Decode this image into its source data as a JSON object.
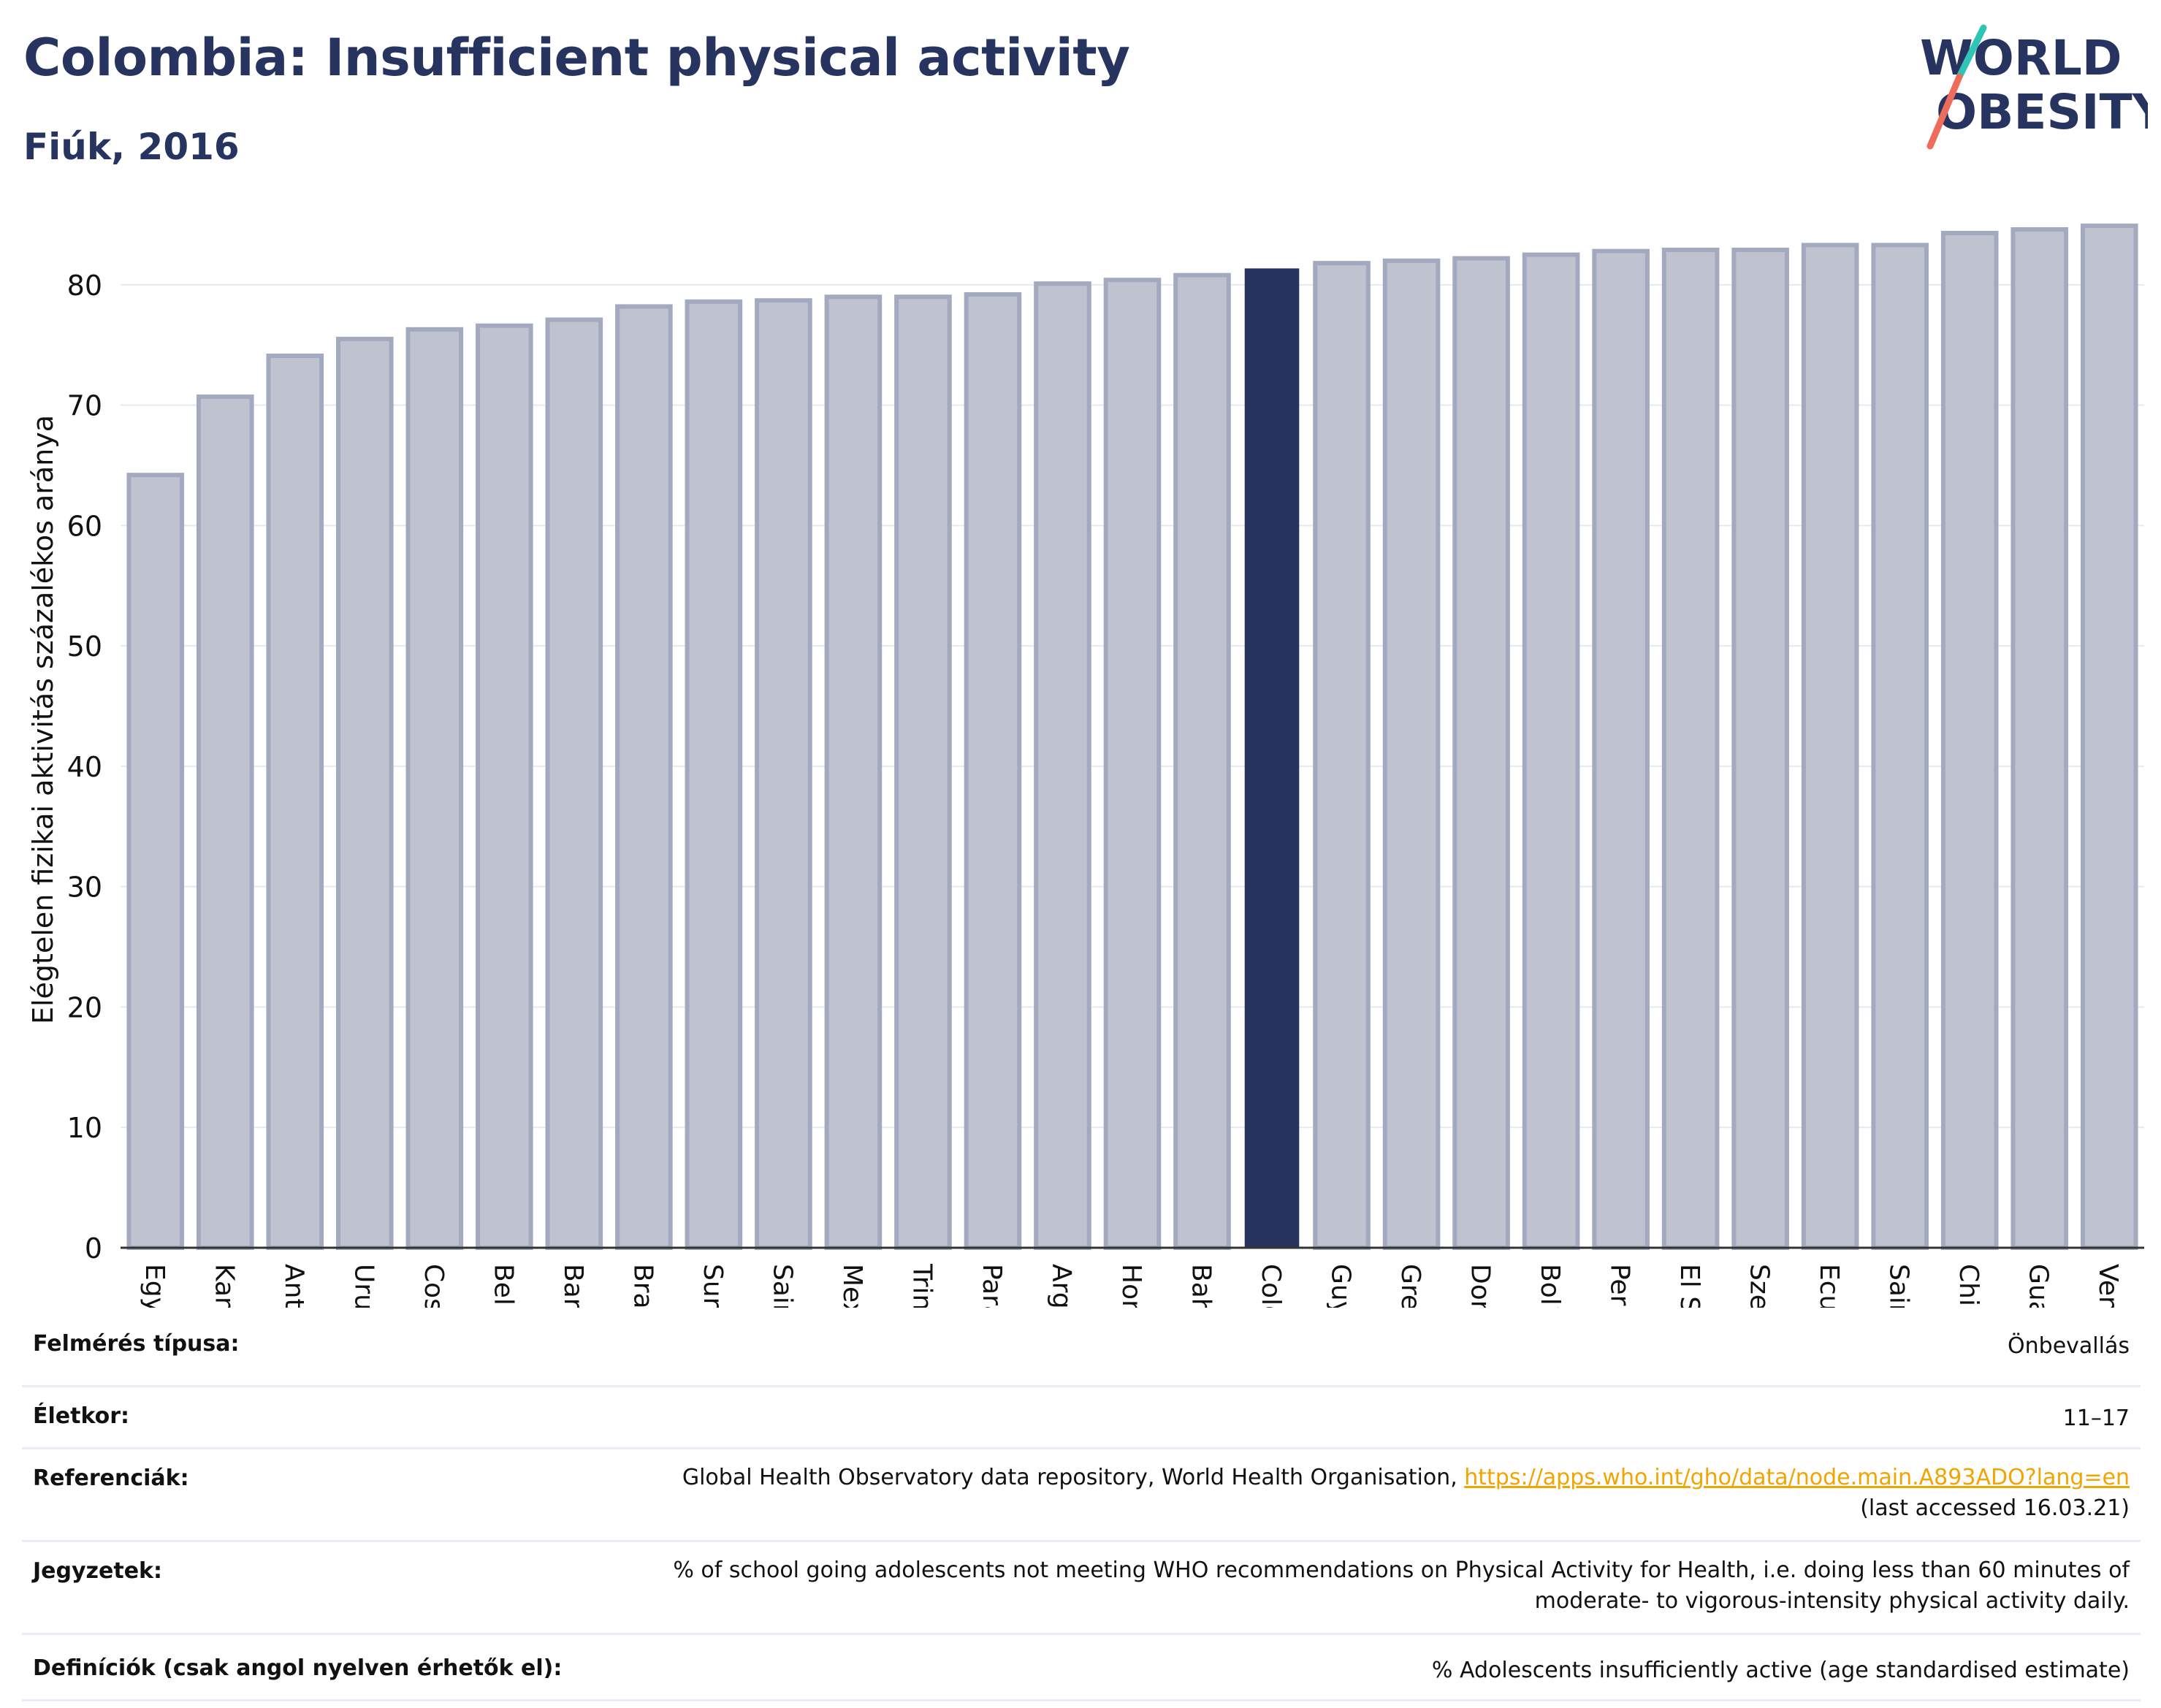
{
  "header": {
    "title": "Colombia: Insufficient physical activity",
    "subtitle": "Fiúk, 2016"
  },
  "logo": {
    "line1": "WORLD",
    "line2": "OBESITY"
  },
  "colors": {
    "highlight": "#283460",
    "bar": "#bfc2cf",
    "bar_edge": "#a3a9bf",
    "title": "#283460",
    "logo_teal": "#2ec4b6",
    "logo_coral": "#ef6b5b",
    "link": "#f0a500"
  },
  "chart_data": {
    "type": "bar",
    "ylabel": "Elégtelen fizikai aktivitás százalékos aránya",
    "xlabel": "",
    "ylim": [
      0,
      88
    ],
    "yticks": [
      0,
      10,
      20,
      30,
      40,
      50,
      60,
      70,
      80
    ],
    "grid": true,
    "highlight": "Colombia",
    "categories": [
      "Egyesült Államok",
      "Kanada",
      "Antigua és Barbuda",
      "Uruguay",
      "Costa Rica",
      "Belize",
      "Barbados",
      "Brazília",
      "Suriname",
      "Saint Kitts és Nevis",
      "Mexikó",
      "Trinidad és Tobago",
      "Paraguay",
      "Argentína",
      "Honduras",
      "Bahama-szigetek",
      "Colombia",
      "Guyana",
      "Grenada",
      "Dominikai Közösség",
      "Bolívia",
      "Peru",
      "El Salvador",
      "Szent Lucia",
      "Ecuador",
      "Saint Vincent és a Grenadine-szigetek",
      "Chile",
      "Guatemala",
      "Venezuela"
    ],
    "values": [
      64.2,
      70.7,
      74.1,
      75.5,
      76.3,
      76.6,
      77.1,
      78.2,
      78.6,
      78.7,
      79.0,
      79.0,
      79.2,
      80.1,
      80.4,
      80.8,
      81.3,
      81.8,
      82.0,
      82.2,
      82.5,
      82.8,
      82.9,
      82.9,
      83.3,
      83.3,
      84.3,
      84.6,
      84.9
    ]
  },
  "footer": {
    "rows": [
      {
        "label": "Felmérés típusa:",
        "value": "Önbevallás"
      },
      {
        "label": "Életkor:",
        "value": "11–17"
      },
      {
        "label": "Referenciák:",
        "value_pre": "Global Health Observatory data repository, World Health Organisation, ",
        "link": "https://apps.who.int/gho/data/node.main.A893ADO?lang=en",
        "value_post": "(last accessed 16.03.21)"
      },
      {
        "label": "Jegyzetek:",
        "value": "% of school going adolescents not meeting WHO recommendations on Physical Activity for Health, i.e. doing less than 60 minutes of moderate- to vigorous-intensity physical activity daily."
      },
      {
        "label": "Definíciók (csak angol nyelven érhetők el):",
        "value": "% Adolescents insufficiently active (age standardised estimate)"
      }
    ]
  }
}
